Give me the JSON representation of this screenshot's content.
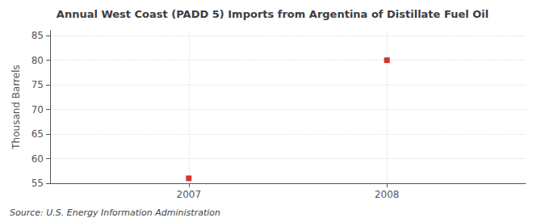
{
  "chart_data": {
    "type": "scatter",
    "title": "Annual West Coast (PADD 5) Imports from Argentina of Distillate Fuel Oil",
    "ylabel": "Thousand Barrels",
    "annotations": [
      "Source: U.S. Energy Information Administration"
    ],
    "x": [
      2007,
      2008
    ],
    "values": [
      56,
      80
    ],
    "color": "#cc0000",
    "marker": "square",
    "xlim": [
      2006.3,
      2008.7
    ],
    "ylim": [
      55,
      86
    ],
    "xticks": [
      2007,
      2008
    ],
    "yticks": [
      55,
      60,
      65,
      70,
      75,
      80,
      85
    ],
    "grid": true
  }
}
